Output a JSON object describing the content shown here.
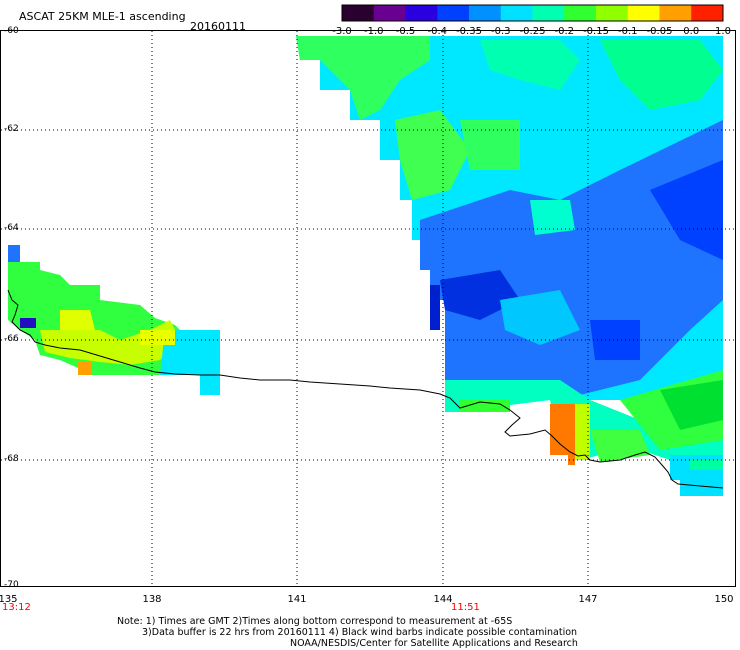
{
  "title": "ASCAT 25KM MLE-1 ascending",
  "date": "20160111",
  "colorbar": {
    "labels": [
      "-3.0",
      "-1.0",
      "-0.5",
      "-0.4",
      "-0.35",
      "-0.3",
      "-0.25",
      "-0.2",
      "-0.15",
      "-0.1",
      "-0.05",
      "0.0",
      "1.0"
    ],
    "colors": [
      "#2a0030",
      "#6a0090",
      "#2a00e0",
      "#0040ff",
      "#0090ff",
      "#00e0ff",
      "#00ffb0",
      "#30ff30",
      "#90ff00",
      "#ffff00",
      "#ffa000",
      "#ff2000"
    ]
  },
  "lat_labels": [
    "-60",
    "-62",
    "-64",
    "-66",
    "-68",
    "-70"
  ],
  "lon_labels": [
    "135",
    "138",
    "141",
    "144",
    "147",
    "150"
  ],
  "time_labels": {
    "left": "13:12",
    "mid": "11:51"
  },
  "notes": {
    "line1": "Note: 1) Times are GMT 2)Times along bottom correspond to measurement at -65S",
    "line2": "3)Data buffer is 22 hrs from 20160111 4) Black wind barbs indicate possible contamination",
    "line3": "NOAA/NESDIS/Center for Satellite Applications and Research"
  }
}
